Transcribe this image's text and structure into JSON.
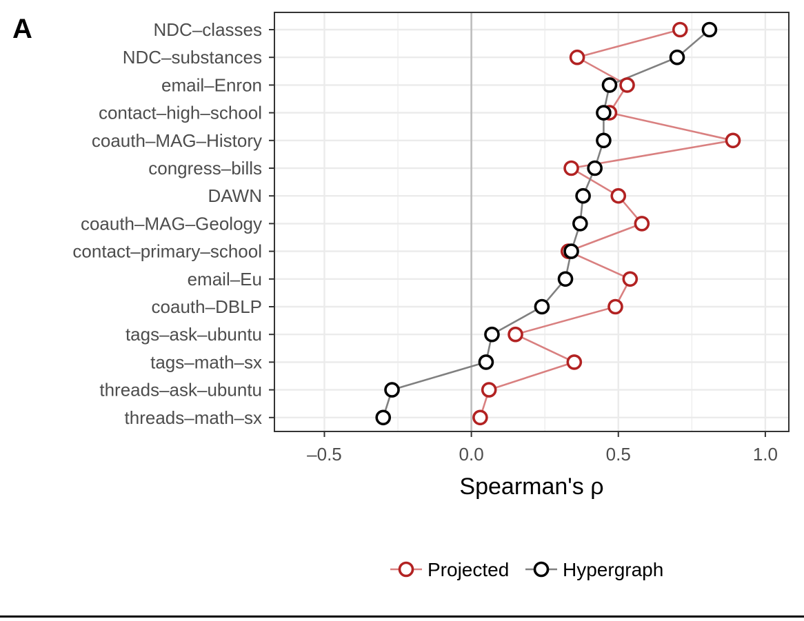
{
  "panel_label": "A",
  "colors": {
    "projected": "#b22222",
    "projected_line": "#d98080",
    "hypergraph": "#000000",
    "hypergraph_line": "#808080",
    "grid": "#ebebeb",
    "zero_line": "#bdbdbd",
    "panel_border": "#333333"
  },
  "chart_data": {
    "type": "scatter",
    "title": "",
    "xlabel": "Spearman's ρ",
    "ylabel": "",
    "xlim": [
      -0.67,
      1.08
    ],
    "x_ticks": [
      -0.5,
      0.0,
      0.5,
      1.0
    ],
    "x_tick_labels": [
      "–0.5",
      "0.0",
      "0.5",
      "1.0"
    ],
    "grid": true,
    "legend_position": "bottom",
    "categories": [
      "NDC–classes",
      "NDC–substances",
      "email–Enron",
      "contact–high–school",
      "coauth–MAG–History",
      "congress–bills",
      "DAWN",
      "coauth–MAG–Geology",
      "contact–primary–school",
      "email–Eu",
      "coauth–DBLP",
      "tags–ask–ubuntu",
      "tags–math–sx",
      "threads–ask–ubuntu",
      "threads–math–sx"
    ],
    "series": [
      {
        "name": "Projected",
        "values": [
          0.71,
          0.36,
          0.53,
          0.47,
          0.89,
          0.34,
          0.5,
          0.58,
          0.33,
          0.54,
          0.49,
          0.15,
          0.35,
          0.06,
          0.03
        ]
      },
      {
        "name": "Hypergraph",
        "values": [
          0.81,
          0.7,
          0.47,
          0.45,
          0.45,
          0.42,
          0.38,
          0.37,
          0.34,
          0.32,
          0.24,
          0.07,
          0.05,
          -0.27,
          -0.3
        ]
      }
    ]
  }
}
